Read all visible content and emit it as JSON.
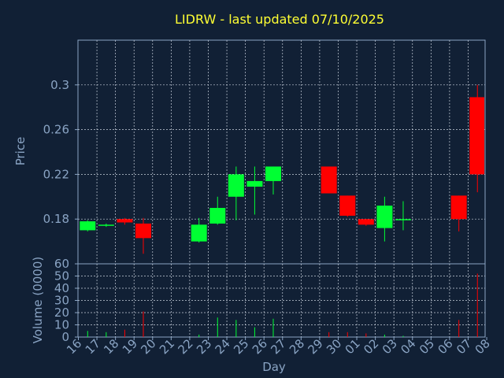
{
  "chart_data": {
    "type": "candlestick",
    "title": "LIDRW - last updated 07/10/2025",
    "xlabel": "Day",
    "price_panel": {
      "ylabel": "Price",
      "ylim": [
        0.14,
        0.34
      ],
      "yticks": [
        0.18,
        0.22,
        0.26,
        0.3
      ],
      "ytick_labels": [
        "0.18",
        "0.22",
        "0.26",
        "0.3"
      ],
      "grid": true
    },
    "volume_panel": {
      "ylabel": "Volume (0000)",
      "ylim": [
        0,
        60
      ],
      "yticks": [
        0,
        10,
        20,
        30,
        40,
        50,
        60
      ],
      "ytick_labels": [
        "0",
        "10",
        "20",
        "30",
        "40",
        "50",
        "60"
      ],
      "grid": true
    },
    "x_labels": [
      "16",
      "17",
      "18",
      "19",
      "20",
      "21",
      "22",
      "23",
      "24",
      "25",
      "26",
      "27",
      "28",
      "29",
      "30",
      "01",
      "02",
      "03",
      "04",
      "05",
      "06",
      "07",
      "08"
    ],
    "candles": [
      {
        "day": "16",
        "open": 0.17,
        "high": 0.179,
        "low": 0.169,
        "close": 0.178,
        "volume": 5
      },
      {
        "day": "17",
        "open": 0.174,
        "high": 0.176,
        "low": 0.173,
        "close": 0.175,
        "volume": 4
      },
      {
        "day": "18",
        "open": 0.18,
        "high": 0.181,
        "low": 0.175,
        "close": 0.177,
        "volume": 6
      },
      {
        "day": "19",
        "open": 0.176,
        "high": 0.181,
        "low": 0.149,
        "close": 0.163,
        "volume": 21
      },
      {
        "day": "22",
        "open": 0.16,
        "high": 0.181,
        "low": 0.159,
        "close": 0.175,
        "volume": 2
      },
      {
        "day": "23",
        "open": 0.176,
        "high": 0.2,
        "low": 0.175,
        "close": 0.19,
        "volume": 16
      },
      {
        "day": "24",
        "open": 0.2,
        "high": 0.227,
        "low": 0.179,
        "close": 0.22,
        "volume": 14
      },
      {
        "day": "25",
        "open": 0.209,
        "high": 0.227,
        "low": 0.184,
        "close": 0.214,
        "volume": 8
      },
      {
        "day": "26",
        "open": 0.214,
        "high": 0.227,
        "low": 0.202,
        "close": 0.227,
        "volume": 15
      },
      {
        "day": "29",
        "open": 0.227,
        "high": 0.227,
        "low": 0.203,
        "close": 0.203,
        "volume": 4
      },
      {
        "day": "30",
        "open": 0.201,
        "high": 0.201,
        "low": 0.182,
        "close": 0.183,
        "volume": 4
      },
      {
        "day": "01",
        "open": 0.18,
        "high": 0.18,
        "low": 0.174,
        "close": 0.175,
        "volume": 3
      },
      {
        "day": "02",
        "open": 0.172,
        "high": 0.2,
        "low": 0.16,
        "close": 0.192,
        "volume": 2
      },
      {
        "day": "03",
        "open": 0.179,
        "high": 0.196,
        "low": 0.17,
        "close": 0.18,
        "volume": 1
      },
      {
        "day": "06",
        "open": 0.201,
        "high": 0.201,
        "low": 0.169,
        "close": 0.18,
        "volume": 14
      },
      {
        "day": "07",
        "open": 0.289,
        "high": 0.3,
        "low": 0.204,
        "close": 0.22,
        "volume": 52
      }
    ]
  },
  "colors": {
    "background": "#112035",
    "title": "#ffff33",
    "axis_text": "#8aa4c4",
    "up": "#00ff33",
    "down": "#ff0000",
    "grid": "#c8d0dc"
  }
}
